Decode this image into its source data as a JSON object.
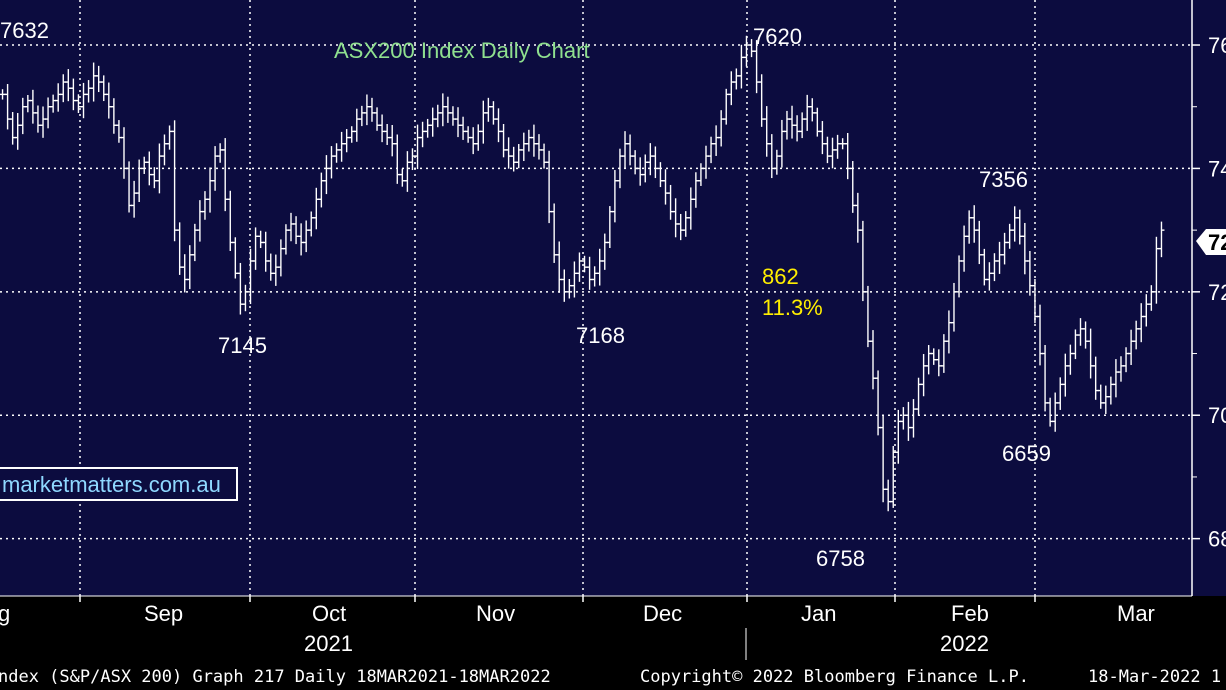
{
  "chart_data": {
    "type": "bar",
    "subtype": "ohlc-daily",
    "title": "ASX200 Index Daily Chart",
    "date_range": "18MAR2021-18MAR2022",
    "ylim": [
      6720,
      7660
    ],
    "y_gridlines": [
      6800,
      7000,
      7200,
      7400,
      7600
    ],
    "y_tick_labels": [
      "68",
      "70",
      "72",
      "74",
      "76"
    ],
    "last_value_label": "72",
    "grid": true,
    "month_labels": [
      "g",
      "Sep",
      "Oct",
      "Nov",
      "Dec",
      "Jan",
      "Feb",
      "Mar"
    ],
    "year_labels": [
      "2021",
      "2022"
    ],
    "annotations": [
      {
        "text": "7632",
        "value": 7632
      },
      {
        "text": "7145",
        "value": 7145
      },
      {
        "text": "7168",
        "value": 7168
      },
      {
        "text": "7620",
        "value": 7620
      },
      {
        "text": "862",
        "color": "yellow"
      },
      {
        "text": "11.3%",
        "color": "yellow"
      },
      {
        "text": "6758",
        "value": 6758
      },
      {
        "text": "7356",
        "value": 7356
      },
      {
        "text": "6659",
        "value": 6659
      }
    ],
    "series": [
      {
        "values": [
          7520,
          7480,
          7450,
          7470,
          7500,
          7510,
          7490,
          7470,
          7480,
          7500,
          7510,
          7520,
          7540,
          7530,
          7510,
          7500,
          7520,
          7530,
          7550,
          7540,
          7520,
          7500,
          7470,
          7450,
          7400,
          7340,
          7360,
          7400,
          7410,
          7390,
          7380,
          7420,
          7440,
          7460,
          7300,
          7240,
          7220,
          7260,
          7300,
          7330,
          7350,
          7380,
          7420,
          7430,
          7350,
          7280,
          7230,
          7180,
          7200,
          7250,
          7290,
          7280,
          7250,
          7230,
          7240,
          7270,
          7300,
          7310,
          7290,
          7280,
          7300,
          7320,
          7350,
          7380,
          7400,
          7420,
          7430,
          7440,
          7450,
          7460,
          7480,
          7490,
          7500,
          7490,
          7470,
          7460,
          7450,
          7440,
          7390,
          7380,
          7410,
          7420,
          7450,
          7460,
          7470,
          7480,
          7490,
          7500,
          7490,
          7480,
          7470,
          7460,
          7450,
          7440,
          7460,
          7490,
          7500,
          7480,
          7460,
          7430,
          7420,
          7410,
          7430,
          7440,
          7450,
          7440,
          7430,
          7410,
          7330,
          7260,
          7220,
          7200,
          7210,
          7230,
          7250,
          7240,
          7220,
          7230,
          7250,
          7280,
          7330,
          7380,
          7420,
          7440,
          7420,
          7400,
          7390,
          7410,
          7420,
          7400,
          7380,
          7360,
          7330,
          7310,
          7300,
          7320,
          7350,
          7380,
          7400,
          7420,
          7440,
          7450,
          7480,
          7520,
          7540,
          7550,
          7580,
          7600,
          7590,
          7540,
          7480,
          7440,
          7400,
          7420,
          7460,
          7480,
          7470,
          7460,
          7480,
          7500,
          7490,
          7460,
          7440,
          7420,
          7430,
          7440,
          7440,
          7400,
          7340,
          7300,
          7200,
          7120,
          7060,
          6980,
          6880,
          6860,
          6940,
          6990,
          7000,
          6980,
          7010,
          7050,
          7080,
          7100,
          7090,
          7080,
          7120,
          7150,
          7200,
          7250,
          7290,
          7320,
          7300,
          7260,
          7220,
          7230,
          7250,
          7260,
          7280,
          7300,
          7320,
          7290,
          7250,
          7210,
          7160,
          7100,
          7020,
          6990,
          7020,
          7050,
          7080,
          7100,
          7130,
          7140,
          7120,
          7080,
          7040,
          7020,
          7030,
          7050,
          7070,
          7080,
          7100,
          7120,
          7140,
          7160,
          7180,
          7200,
          7270,
          7300
        ]
      }
    ]
  },
  "footer": {
    "left": "ndex (S&P/ASX 200) Graph 217  Daily 18MAR2021-18MAR2022",
    "center": "Copyright© 2022 Bloomberg Finance L.P.",
    "right": "18-Mar-2022 1"
  },
  "watermark": "marketmatters.com.au",
  "colors": {
    "background": "#000000",
    "plot": "#0c0c3f",
    "bars": "#ffffff",
    "title": "#8fe08f",
    "highlight": "#ffee00",
    "watermark_text": "#8fd8ff"
  }
}
